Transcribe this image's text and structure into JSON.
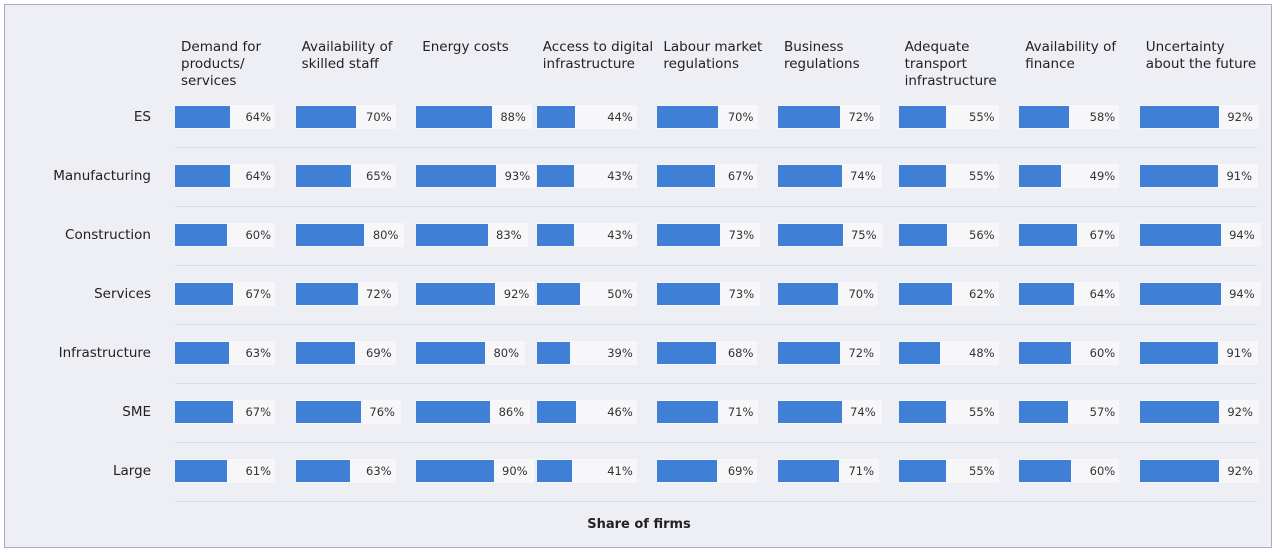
{
  "chart_data": {
    "type": "bar",
    "orientation": "horizontal",
    "xlabel": "Share of firms",
    "categories": [
      "ES",
      "Manufacturing",
      "Construction",
      "Services",
      "Infrastructure",
      "SME",
      "Large"
    ],
    "series": [
      {
        "name": "Demand for products/ services",
        "color": "#3f7fd6",
        "values": [
          64,
          64,
          60,
          67,
          63,
          67,
          61
        ],
        "value_labels": [
          "64%",
          "64%",
          "60%",
          "67%",
          "63%",
          "67%",
          "61%"
        ]
      },
      {
        "name": "Availability of skilled staff",
        "color": "#3f7fd6",
        "values": [
          70,
          65,
          80,
          72,
          69,
          76,
          63
        ],
        "value_labels": [
          "70%",
          "65%",
          "80%",
          "72%",
          "69%",
          "76%",
          "63%"
        ]
      },
      {
        "name": "Energy costs",
        "color": "#3f7fd6",
        "values": [
          88,
          93,
          83,
          92,
          80,
          86,
          90
        ],
        "value_labels": [
          "88%",
          "93%",
          "83%",
          "92%",
          "80%",
          "86%",
          "90%"
        ]
      },
      {
        "name": "Access to digital infrastructure",
        "color": "#3f7fd6",
        "values": [
          44,
          43,
          43,
          50,
          39,
          46,
          41
        ],
        "value_labels": [
          "44%",
          "43%",
          "43%",
          "50%",
          "39%",
          "46%",
          "41%"
        ]
      },
      {
        "name": "Labour market regulations",
        "color": "#3f7fd6",
        "values": [
          70,
          67,
          73,
          73,
          68,
          71,
          69
        ],
        "value_labels": [
          "70%",
          "67%",
          "73%",
          "73%",
          "68%",
          "71%",
          "69%"
        ]
      },
      {
        "name": "Business regulations",
        "color": "#3f7fd6",
        "values": [
          72,
          74,
          75,
          70,
          72,
          74,
          71
        ],
        "value_labels": [
          "72%",
          "74%",
          "75%",
          "70%",
          "72%",
          "74%",
          "71%"
        ]
      },
      {
        "name": "Adequate transport infrastructure",
        "color": "#3f7fd6",
        "values": [
          55,
          55,
          56,
          62,
          48,
          55,
          55
        ],
        "value_labels": [
          "55%",
          "55%",
          "56%",
          "62%",
          "48%",
          "55%",
          "55%"
        ]
      },
      {
        "name": "Availability of finance",
        "color": "#3f7fd6",
        "values": [
          58,
          49,
          67,
          64,
          60,
          57,
          60
        ],
        "value_labels": [
          "58%",
          "49%",
          "67%",
          "64%",
          "60%",
          "57%",
          "60%"
        ]
      },
      {
        "name": "Uncertainty about the future",
        "color": "#3f7fd6",
        "values": [
          92,
          91,
          94,
          94,
          91,
          92,
          92
        ],
        "value_labels": [
          "92%",
          "91%",
          "94%",
          "94%",
          "91%",
          "92%",
          "92%"
        ]
      }
    ]
  }
}
